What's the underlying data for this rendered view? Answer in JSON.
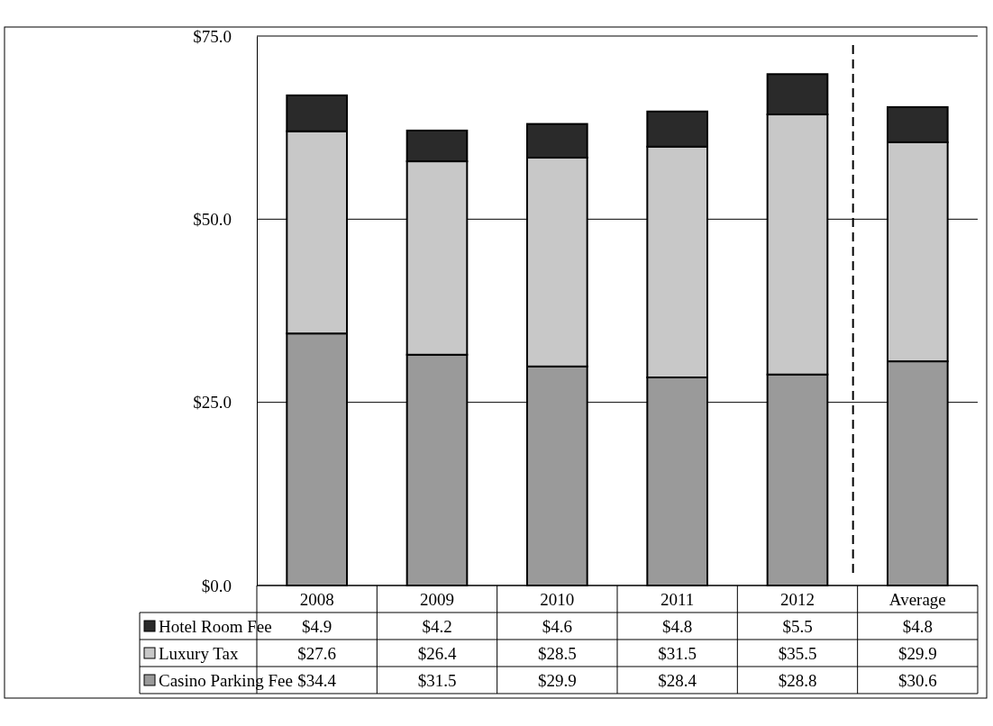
{
  "chart_data": {
    "type": "bar",
    "stacked": true,
    "categories": [
      "2008",
      "2009",
      "2010",
      "2011",
      "2012",
      "Average"
    ],
    "series": [
      {
        "name": "Casino Parking Fee",
        "color": "#9a9a9a",
        "values": [
          34.4,
          31.5,
          29.9,
          28.4,
          28.8,
          30.6
        ],
        "value_labels": [
          "$34.4",
          "$31.5",
          "$29.9",
          "$28.4",
          "$28.8",
          "$30.6"
        ]
      },
      {
        "name": "Luxury Tax",
        "color": "#c8c8c8",
        "values": [
          27.6,
          26.4,
          28.5,
          31.5,
          35.5,
          29.9
        ],
        "value_labels": [
          "$27.6",
          "$26.4",
          "$28.5",
          "$31.5",
          "$35.5",
          "$29.9"
        ]
      },
      {
        "name": "Hotel Room Fee",
        "color": "#2a2a2a",
        "values": [
          4.9,
          4.2,
          4.6,
          4.8,
          5.5,
          4.8
        ],
        "value_labels": [
          "$4.9",
          "$4.2",
          "$4.6",
          "$4.8",
          "$5.5",
          "$4.8"
        ]
      }
    ],
    "ylim": [
      0,
      75
    ],
    "yticks": [
      {
        "value": 0,
        "label": "$0.0"
      },
      {
        "value": 25,
        "label": "$25.0"
      },
      {
        "value": 50,
        "label": "$50.0"
      },
      {
        "value": 75,
        "label": "$75.0"
      }
    ],
    "grid": "y",
    "legend": "bottom left"
  }
}
